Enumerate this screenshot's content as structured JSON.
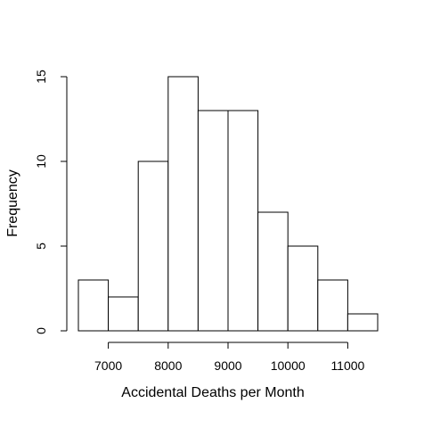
{
  "chart_data": {
    "type": "bar",
    "subtype": "histogram",
    "xlabel": "Accidental Deaths per Month",
    "ylabel": "Frequency",
    "bins": [
      {
        "start": 6500,
        "end": 7000,
        "count": 3
      },
      {
        "start": 7000,
        "end": 7500,
        "count": 2
      },
      {
        "start": 7500,
        "end": 8000,
        "count": 10
      },
      {
        "start": 8000,
        "end": 8500,
        "count": 15
      },
      {
        "start": 8500,
        "end": 9000,
        "count": 13
      },
      {
        "start": 9000,
        "end": 9500,
        "count": 13
      },
      {
        "start": 9500,
        "end": 10000,
        "count": 7
      },
      {
        "start": 10000,
        "end": 10500,
        "count": 5
      },
      {
        "start": 10500,
        "end": 11000,
        "count": 3
      },
      {
        "start": 11000,
        "end": 11500,
        "count": 1
      }
    ],
    "xlim": [
      6500,
      11500
    ],
    "ylim": [
      0,
      15
    ],
    "xticks": [
      7000,
      8000,
      9000,
      10000,
      11000
    ],
    "xtick_labels": [
      "7000",
      "8000",
      "9000",
      "10000",
      "11000"
    ],
    "yticks": [
      0,
      5,
      10,
      15
    ],
    "ytick_labels": [
      "0",
      "5",
      "10",
      "15"
    ],
    "grid": false,
    "legend": "none",
    "bar_fill": "#ffffff",
    "bar_stroke": "#000000"
  }
}
